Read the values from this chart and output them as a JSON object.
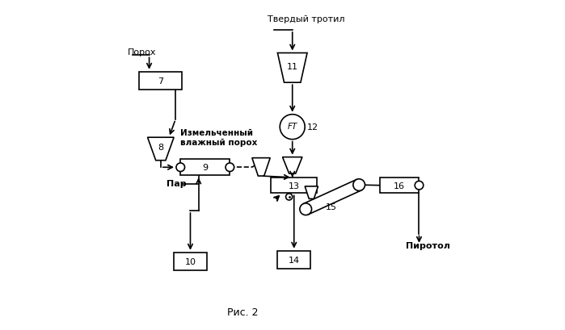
{
  "background": "#ffffff",
  "labels": {
    "poroh": "Порох",
    "tverdiy": "Твердый тротил",
    "izmelch": "Измельченный\nвлажный порох",
    "par": "Пар",
    "pirotol": "Пиротол",
    "fig": "Рис. 2"
  }
}
